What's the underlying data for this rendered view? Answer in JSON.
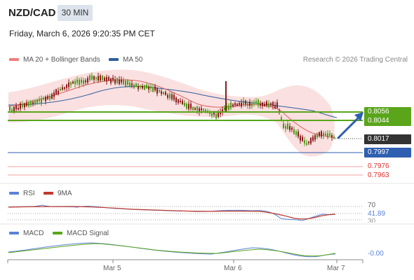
{
  "header": {
    "symbol": "NZD/CAD",
    "interval": "30 MIN",
    "datetime": "Friday, March 6, 2026 9:20:35 PM CET"
  },
  "legend": {
    "ma20": "MA 20 + Bollinger Bands",
    "ma50": "MA 50",
    "ma20_color": "#f07c7c",
    "ma50_color": "#2e5d9e",
    "research": "Research © 2026 Trading Central"
  },
  "levels": {
    "r2": "0.8056",
    "r1": "0.8044",
    "last": "0.8017",
    "pivot": "0.7997",
    "s1": "0.7976",
    "s2": "0.7963",
    "resistance_color": "#5aa51a",
    "pivot_color": "#2e5fb0",
    "support_color": "#e03030",
    "last_color": "#333333"
  },
  "rsi": {
    "label": "RSI",
    "ma_label": "9MA",
    "level_70": "70",
    "value": "41.89",
    "level_30": "30"
  },
  "macd": {
    "label": "MACD",
    "signal_label": "MACD Signal",
    "value": "-0.00"
  },
  "xaxis": [
    "Mar 5",
    "Mar 6",
    "Mar 7"
  ]
}
